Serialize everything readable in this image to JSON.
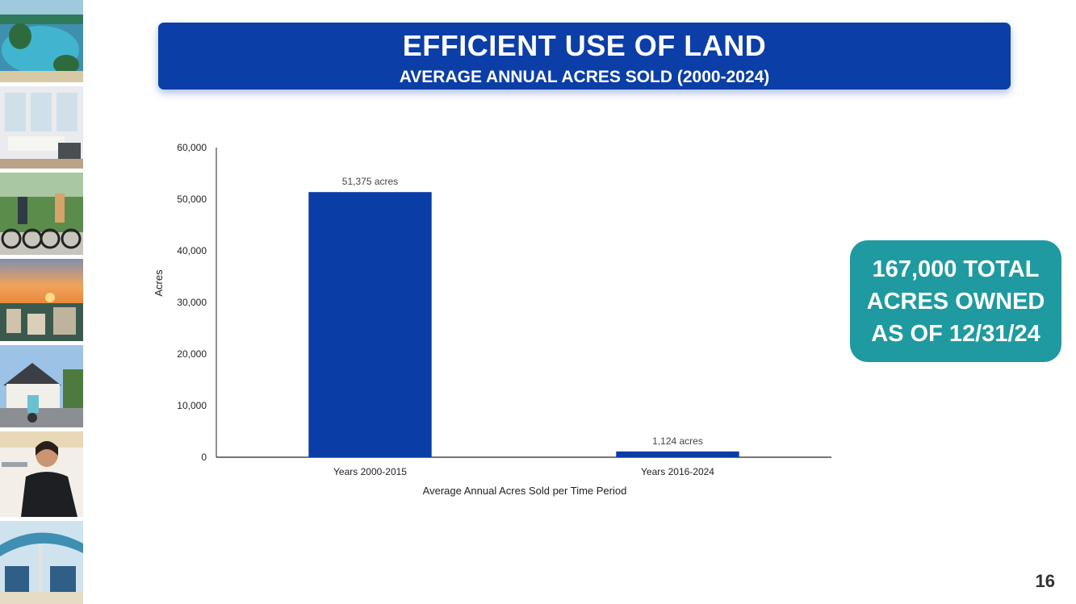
{
  "title": {
    "main": "EFFICIENT USE OF LAND",
    "subtitle": "AVERAGE ANNUAL ACRES SOLD (2000-2024)"
  },
  "callout": {
    "lines": [
      "167,000 TOTAL",
      "ACRES OWNED",
      "AS OF 12/31/24"
    ]
  },
  "page_number": "16",
  "photos": [
    "resort-pool-photo",
    "living-room-photo",
    "bike-riders-photo",
    "sunset-town-photo",
    "house-scooter-photo",
    "server-woman-photo",
    "beach-chairs-photo"
  ],
  "colors": {
    "banner": "#0b3ea6",
    "bar": "#0a3da6",
    "callout": "#1f9aa0"
  },
  "chart_data": {
    "type": "bar",
    "categories": [
      "Years 2000-2015",
      "Years 2016-2024"
    ],
    "values": [
      51375,
      1124
    ],
    "data_labels": [
      "51,375 acres",
      "1,124 acres"
    ],
    "title": "",
    "xlabel": "Average Annual Acres Sold per Time Period",
    "ylabel": "Acres",
    "ylim": [
      0,
      60000
    ],
    "yticks": [
      0,
      10000,
      20000,
      30000,
      40000,
      50000,
      60000
    ],
    "ytick_labels": [
      "0",
      "10,000",
      "20,000",
      "30,000",
      "40,000",
      "50,000",
      "60,000"
    ],
    "grid": false,
    "legend": "none"
  }
}
